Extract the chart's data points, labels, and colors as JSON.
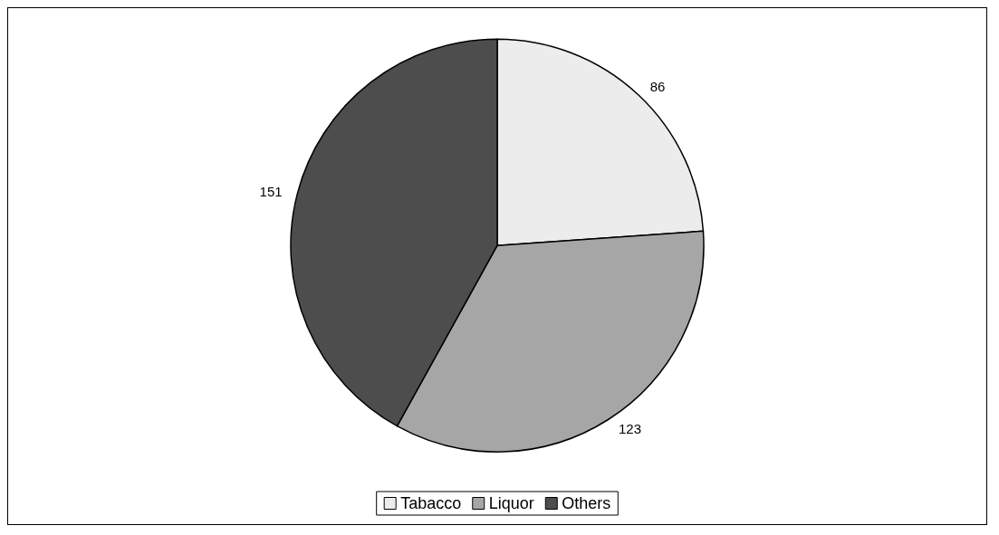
{
  "chart_data": {
    "type": "pie",
    "categories": [
      "Tabacco",
      "Liquor",
      "Others"
    ],
    "values": [
      86,
      123,
      151
    ],
    "colors": [
      "#ececec",
      "#a6a6a6",
      "#4d4d4d"
    ],
    "data_labels": true,
    "legend": "bottom"
  }
}
